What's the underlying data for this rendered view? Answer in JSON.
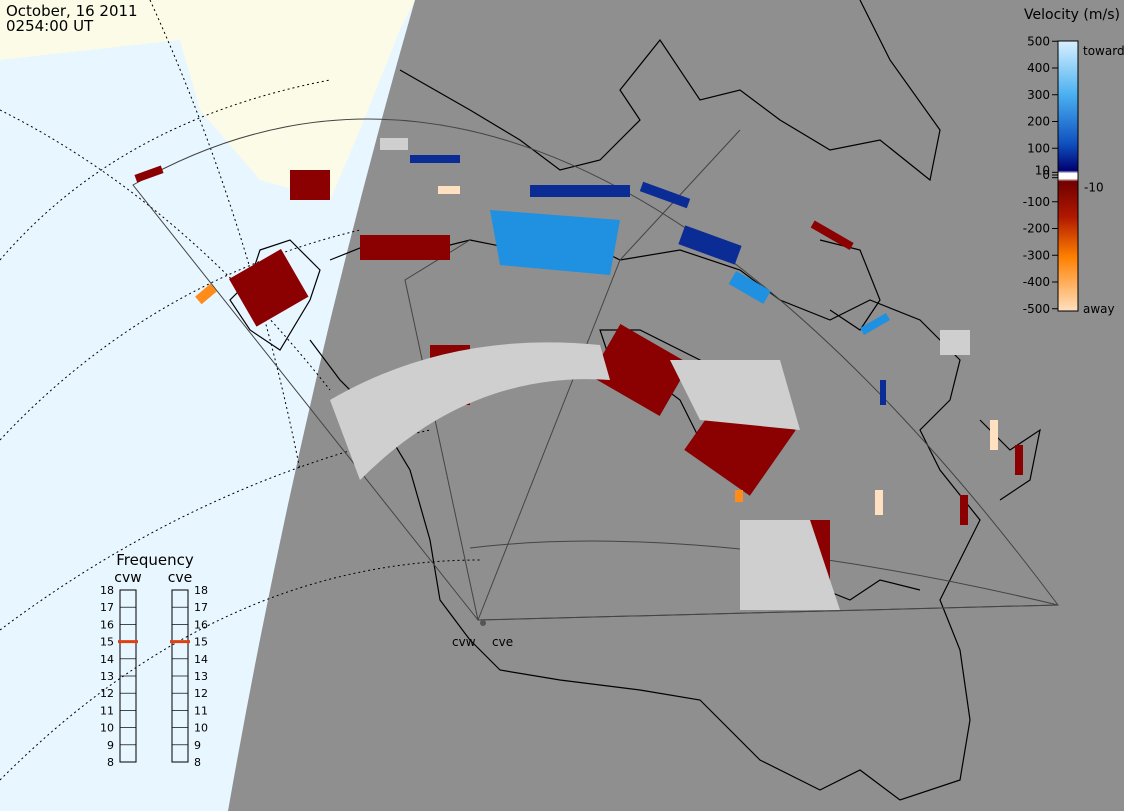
{
  "header": {
    "date": "October, 16 2011",
    "time": "0254:00 UT"
  },
  "velocity_scale": {
    "title": "Velocity (m/s)",
    "ticks": [
      500,
      400,
      300,
      200,
      100,
      10,
      0,
      -10,
      -100,
      -200,
      -300,
      -400,
      -500
    ],
    "toward": "toward",
    "away": "away"
  },
  "frequency_panel": {
    "title": "Frequency",
    "ticks": [
      8,
      9,
      10,
      11,
      12,
      13,
      14,
      15,
      16,
      17,
      18
    ],
    "radars": [
      {
        "name": "cvw",
        "frequency": 15
      },
      {
        "name": "cve",
        "frequency": 15
      }
    ]
  }
}
